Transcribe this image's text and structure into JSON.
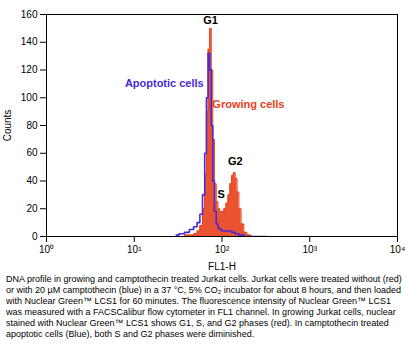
{
  "chart_data": {
    "type": "histogram",
    "caption": "DNA profile in growing and camptothecin treated Jurkat cells. Jurkat cells were treated without (red) or with 20 µM camptothecin (blue) in a 37 °C, 5% CO₂ incubator for about 8 hours, and then loaded with Nuclear Green™ LCS1 for 60 minutes. The fluorescence intensity of Nuclear Green™ LCS1 was measured with a FACSCalibur flow cytometer in FL1 channel. In growing Jurkat cells, nuclear stained with Nuclear Green™ LCS1 shows G1, S, and G2 phases (red). In camptothecin treated apoptotic cells (Blue), both S and G2 phases were diminished.",
    "x_label": "FL1-H",
    "y_label": "Counts",
    "log": "x",
    "grid": false,
    "xlim": [
      1,
      10000
    ],
    "xticks": [
      {
        "value": 1,
        "label": "10⁰"
      },
      {
        "value": 10,
        "label": "10¹"
      },
      {
        "value": 100,
        "label": "10²"
      },
      {
        "value": 1000,
        "label": "10³"
      },
      {
        "value": 10000,
        "label": "10⁴"
      }
    ],
    "ylim": [
      0,
      160
    ],
    "yticks": [
      0,
      20,
      40,
      60,
      80,
      100,
      120,
      140,
      160
    ],
    "x": [
      30,
      35,
      40,
      45,
      50,
      54,
      58,
      62,
      65,
      68,
      71,
      74,
      77,
      80,
      84,
      88,
      92,
      97,
      102,
      108,
      114,
      120,
      126,
      132,
      138,
      145,
      152,
      160,
      170,
      185,
      200,
      230,
      270,
      320
    ],
    "series": [
      {
        "name": "Growing cells",
        "type": "area",
        "color": "#e8401c",
        "values": [
          0,
          0,
          1,
          1,
          2,
          4,
          8,
          20,
          45,
          90,
          135,
          150,
          120,
          70,
          38,
          25,
          20,
          18,
          18,
          20,
          24,
          30,
          38,
          44,
          46,
          42,
          32,
          20,
          9,
          3,
          1,
          0,
          0,
          0
        ]
      },
      {
        "name": "Apoptotic cells",
        "type": "line",
        "color": "#4a2ad4",
        "values": [
          1,
          2,
          3,
          5,
          7,
          10,
          16,
          30,
          60,
          100,
          132,
          120,
          80,
          40,
          18,
          9,
          6,
          5,
          4,
          4,
          4,
          4,
          4,
          3,
          3,
          2,
          2,
          1,
          1,
          0,
          0,
          0,
          0,
          0
        ]
      }
    ],
    "annotations": [
      {
        "text": "G1",
        "x": 74,
        "y": 156,
        "color": "#000000"
      },
      {
        "text": "S",
        "x": 98,
        "y": 30,
        "color": "#000000"
      },
      {
        "text": "G2",
        "x": 142,
        "y": 54,
        "color": "#000000"
      },
      {
        "text": "Apoptotic cells",
        "x": 22,
        "y": 110,
        "color": "#4a2ad4"
      },
      {
        "text": "Growing cells",
        "x": 200,
        "y": 95,
        "color": "#e8401c"
      }
    ]
  }
}
